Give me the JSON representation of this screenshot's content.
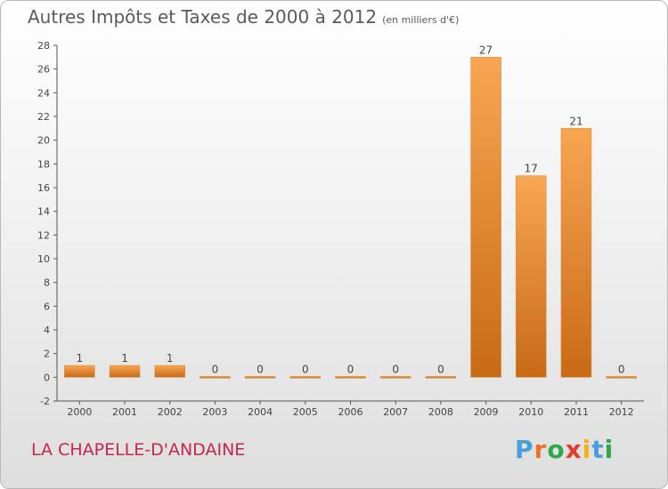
{
  "header": {
    "title": "Autres Impôts et Taxes de 2000 à 2012",
    "unit": "(en milliers d'€)"
  },
  "footer": {
    "commune": "LA CHAPELLE-D'ANDAINE",
    "logo_letters": [
      "P",
      "r",
      "o",
      "x",
      "i",
      "t",
      "i"
    ],
    "logo_colors": [
      "#4a9fd8",
      "#e8722c",
      "#2ea84a",
      "#e33c2e",
      "#f2b318",
      "#4a9fd8",
      "#2ea84a"
    ]
  },
  "chart_data": {
    "type": "bar",
    "categories": [
      "2000",
      "2001",
      "2002",
      "2003",
      "2004",
      "2005",
      "2006",
      "2007",
      "2008",
      "2009",
      "2010",
      "2011",
      "2012"
    ],
    "values": [
      1,
      1,
      1,
      0,
      0,
      0,
      0,
      0,
      0,
      27,
      17,
      21,
      0
    ],
    "data_labels": [
      "1",
      "1",
      "1",
      "0",
      "0",
      "0",
      "0",
      "0",
      "0",
      "27",
      "17",
      "21",
      "0"
    ],
    "ylim": [
      -2,
      28
    ],
    "yticks": [
      -2,
      0,
      2,
      4,
      6,
      8,
      10,
      12,
      14,
      16,
      18,
      20,
      22,
      24,
      26,
      28
    ],
    "grid": false,
    "colors": {
      "bar_light": "#f7a652",
      "bar_dark": "#c86a16",
      "axis": "#555555"
    }
  }
}
